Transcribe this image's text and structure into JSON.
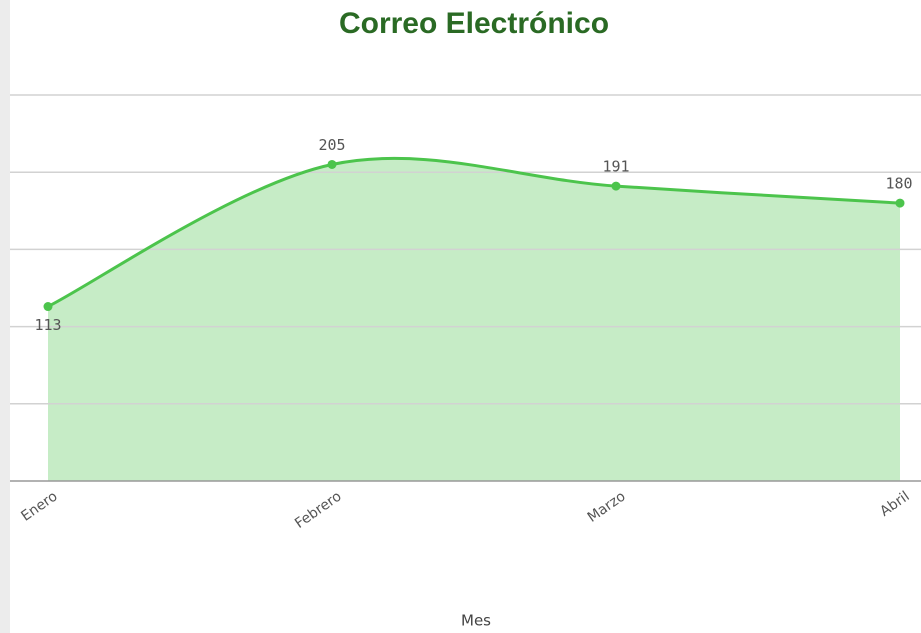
{
  "chart_data": {
    "type": "area",
    "title": "Correo Electrónico",
    "x_label": "Mes",
    "categories": [
      "Enero",
      "Febrero",
      "Marzo",
      "Abril"
    ],
    "values": [
      113,
      205,
      191,
      180
    ],
    "color": "#4cc44c",
    "fill": "#c6ecc6",
    "ylim": [
      0,
      250
    ],
    "yticks": [
      0,
      50,
      100,
      150,
      200,
      250
    ],
    "grid": true
  }
}
